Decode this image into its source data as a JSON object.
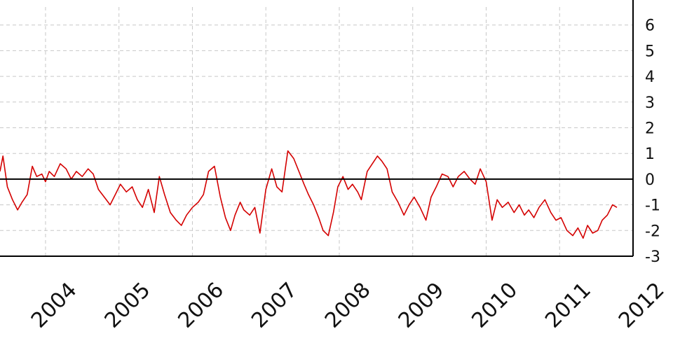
{
  "chart_data": {
    "type": "line",
    "title": "",
    "xlabel": "",
    "ylabel": "",
    "xlim": [
      2003.38,
      2012.0
    ],
    "ylim": [
      -3,
      6.7
    ],
    "grid": true,
    "y_axis_side": "right",
    "reference_line": 0,
    "colors": {
      "series": "#d40000",
      "zero_line": "#000000",
      "grid": "#c8c8c8",
      "axis": "#000000"
    },
    "x_ticks": [
      {
        "value": 2004,
        "label": "2004"
      },
      {
        "value": 2005,
        "label": "2005"
      },
      {
        "value": 2006,
        "label": "2006"
      },
      {
        "value": 2007,
        "label": "2007"
      },
      {
        "value": 2008,
        "label": "2008"
      },
      {
        "value": 2009,
        "label": "2009"
      },
      {
        "value": 2010,
        "label": "2010"
      },
      {
        "value": 2011,
        "label": "2011"
      },
      {
        "value": 2012,
        "label": "2012"
      }
    ],
    "y_ticks": [
      {
        "value": 6,
        "label": "6"
      },
      {
        "value": 5,
        "label": "5"
      },
      {
        "value": 4,
        "label": "4"
      },
      {
        "value": 3,
        "label": "3"
      },
      {
        "value": 2,
        "label": "2"
      },
      {
        "value": 1,
        "label": "1"
      },
      {
        "value": 0,
        "label": "0"
      },
      {
        "value": -1,
        "label": "-1"
      },
      {
        "value": -2,
        "label": "-2"
      },
      {
        "value": -3,
        "label": "-3"
      }
    ],
    "series": [
      {
        "x": [
          2003.38,
          2003.42,
          2003.48,
          2003.55,
          2003.62,
          2003.68,
          2003.75,
          2003.82,
          2003.88,
          2003.95,
          2004.0,
          2004.05,
          2004.12,
          2004.2,
          2004.28,
          2004.35,
          2004.42,
          2004.5,
          2004.58,
          2004.65,
          2004.72,
          2004.8,
          2004.88,
          2004.95,
          2005.02,
          2005.1,
          2005.18,
          2005.25,
          2005.32,
          2005.4,
          2005.48,
          2005.55,
          2005.62,
          2005.7,
          2005.78,
          2005.85,
          2005.92,
          2006.0,
          2006.08,
          2006.15,
          2006.22,
          2006.3,
          2006.38,
          2006.45,
          2006.52,
          2006.58,
          2006.65,
          2006.7,
          2006.78,
          2006.85,
          2006.92,
          2007.0,
          2007.08,
          2007.15,
          2007.22,
          2007.3,
          2007.38,
          2007.45,
          2007.52,
          2007.58,
          2007.65,
          2007.72,
          2007.78,
          2007.85,
          2007.92,
          2007.98,
          2008.05,
          2008.12,
          2008.18,
          2008.25,
          2008.3,
          2008.38,
          2008.45,
          2008.52,
          2008.58,
          2008.65,
          2008.72,
          2008.8,
          2008.88,
          2008.95,
          2009.02,
          2009.1,
          2009.18,
          2009.25,
          2009.32,
          2009.4,
          2009.48,
          2009.55,
          2009.62,
          2009.7,
          2009.78,
          2009.85,
          2009.92,
          2010.0,
          2010.08,
          2010.15,
          2010.22,
          2010.3,
          2010.38,
          2010.45,
          2010.52,
          2010.58,
          2010.65,
          2010.72,
          2010.8,
          2010.88,
          2010.95,
          2011.02,
          2011.1,
          2011.18,
          2011.25,
          2011.32,
          2011.38,
          2011.45,
          2011.52,
          2011.58,
          2011.65,
          2011.72,
          2011.78
        ],
        "y": [
          0.3,
          0.9,
          -0.3,
          -0.8,
          -1.2,
          -0.9,
          -0.6,
          0.5,
          0.1,
          0.2,
          -0.1,
          0.3,
          0.1,
          0.6,
          0.4,
          0.0,
          0.3,
          0.1,
          0.4,
          0.2,
          -0.4,
          -0.7,
          -1.0,
          -0.6,
          -0.2,
          -0.5,
          -0.3,
          -0.8,
          -1.1,
          -0.4,
          -1.3,
          0.1,
          -0.6,
          -1.3,
          -1.6,
          -1.8,
          -1.4,
          -1.1,
          -0.9,
          -0.6,
          0.3,
          0.5,
          -0.7,
          -1.5,
          -2.0,
          -1.4,
          -0.9,
          -1.2,
          -1.4,
          -1.1,
          -2.1,
          -0.4,
          0.4,
          -0.3,
          -0.5,
          1.1,
          0.8,
          0.3,
          -0.2,
          -0.6,
          -1.0,
          -1.5,
          -2.0,
          -2.2,
          -1.3,
          -0.3,
          0.1,
          -0.4,
          -0.2,
          -0.5,
          -0.8,
          0.3,
          0.6,
          0.9,
          0.7,
          0.4,
          -0.5,
          -0.9,
          -1.4,
          -1.0,
          -0.7,
          -1.1,
          -1.6,
          -0.7,
          -0.3,
          0.2,
          0.1,
          -0.3,
          0.1,
          0.3,
          0.0,
          -0.2,
          0.4,
          -0.1,
          -1.6,
          -0.8,
          -1.1,
          -0.9,
          -1.3,
          -1.0,
          -1.4,
          -1.2,
          -1.5,
          -1.1,
          -0.8,
          -1.3,
          -1.6,
          -1.5,
          -2.0,
          -2.2,
          -1.9,
          -2.3,
          -1.8,
          -2.1,
          -2.0,
          -1.6,
          -1.4,
          -1.0,
          -1.1
        ]
      }
    ]
  }
}
